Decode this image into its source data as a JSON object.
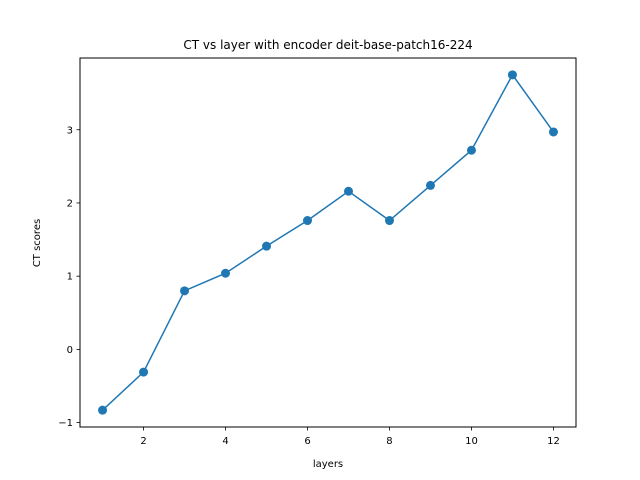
{
  "chart_data": {
    "type": "line",
    "title": "CT vs layer with encoder deit-base-patch16-224",
    "xlabel": "layers",
    "ylabel": "CT scores",
    "x": [
      1,
      2,
      3,
      4,
      5,
      6,
      7,
      8,
      9,
      10,
      11,
      12
    ],
    "series": [
      {
        "values": [
          -0.83,
          -0.31,
          0.8,
          1.04,
          1.41,
          1.76,
          2.16,
          1.76,
          2.24,
          2.72,
          3.75,
          2.97
        ],
        "color": "#1f77b4",
        "marker": "circle"
      }
    ],
    "xlim": [
      0.45,
      12.55
    ],
    "ylim": [
      -1.06,
      3.98
    ],
    "xticks": [
      2,
      4,
      6,
      8,
      10,
      12
    ],
    "xtick_labels": [
      "2",
      "4",
      "6",
      "8",
      "10",
      "12"
    ],
    "yticks": [
      -1,
      0,
      1,
      2,
      3
    ],
    "ytick_labels": [
      "−1",
      "0",
      "1",
      "2",
      "3"
    ],
    "grid": false,
    "legend": "none"
  }
}
